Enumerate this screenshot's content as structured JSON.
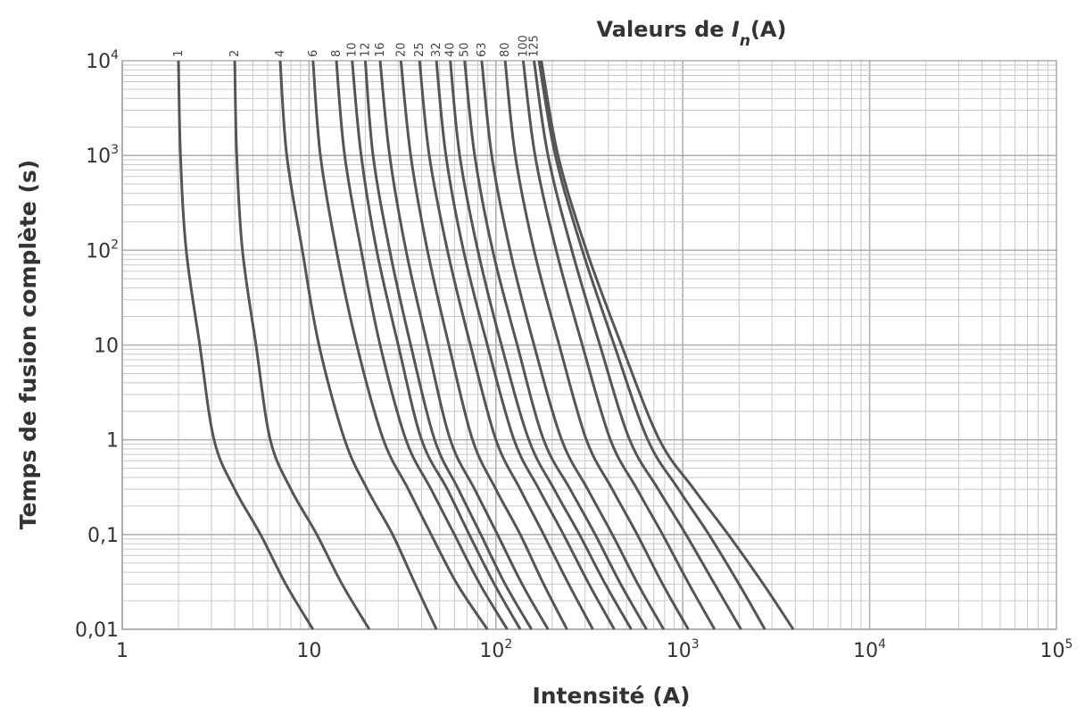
{
  "chart_data": {
    "type": "line",
    "title_prefix": "Valeurs de ",
    "title_var": "I",
    "title_sub": "n",
    "title_suffix": "(A)",
    "xlabel": "Intensité (A)",
    "ylabel": "Temps de fusion complète (s)",
    "x_scale": "log",
    "y_scale": "log",
    "xlim": [
      1,
      100000
    ],
    "ylim": [
      0.01,
      10000
    ],
    "grid": true,
    "x_ticks": [
      {
        "value": 1,
        "mantissa": "1",
        "exp": ""
      },
      {
        "value": 10,
        "mantissa": "10",
        "exp": ""
      },
      {
        "value": 100,
        "mantissa": "10",
        "exp": "2"
      },
      {
        "value": 1000,
        "mantissa": "10",
        "exp": "3"
      },
      {
        "value": 10000,
        "mantissa": "10",
        "exp": "4"
      },
      {
        "value": 100000,
        "mantissa": "10",
        "exp": "5"
      }
    ],
    "y_ticks": [
      {
        "value": 0.01,
        "mantissa": "0,01",
        "exp": ""
      },
      {
        "value": 0.1,
        "mantissa": "0,1",
        "exp": ""
      },
      {
        "value": 1,
        "mantissa": "1",
        "exp": ""
      },
      {
        "value": 10,
        "mantissa": "10",
        "exp": ""
      },
      {
        "value": 100,
        "mantissa": "10",
        "exp": "2"
      },
      {
        "value": 1000,
        "mantissa": "10",
        "exp": "3"
      },
      {
        "value": 10000,
        "mantissa": "10",
        "exp": "4"
      }
    ],
    "series": [
      {
        "name": "1",
        "x": [
          2.0,
          2.05,
          2.2,
          2.6,
          3.1,
          4.0,
          5.5,
          7.5,
          10.5
        ],
        "y": [
          10000,
          1000,
          100,
          10,
          1,
          0.3,
          0.1,
          0.03,
          0.01
        ]
      },
      {
        "name": "2",
        "x": [
          4.0,
          4.1,
          4.4,
          5.2,
          6.2,
          8.0,
          11,
          15,
          21
        ],
        "y": [
          10000,
          1000,
          100,
          10,
          1,
          0.3,
          0.1,
          0.03,
          0.01
        ]
      },
      {
        "name": "4",
        "x": [
          7.0,
          7.6,
          9.2,
          11.3,
          15.5,
          20.5,
          28,
          37,
          48
        ],
        "y": [
          10000,
          1000,
          100,
          10,
          1,
          0.3,
          0.1,
          0.03,
          0.01
        ]
      },
      {
        "name": "6",
        "x": [
          10.5,
          11.5,
          14,
          18,
          25,
          34,
          45,
          62,
          90
        ],
        "y": [
          10000,
          1000,
          100,
          10,
          1,
          0.3,
          0.1,
          0.03,
          0.01
        ]
      },
      {
        "name": "8",
        "x": [
          14,
          15.5,
          19,
          24,
          33,
          45,
          60,
          82,
          115
        ],
        "y": [
          10000,
          1000,
          100,
          10,
          1,
          0.3,
          0.1,
          0.03,
          0.01
        ]
      },
      {
        "name": "10",
        "x": [
          17,
          19,
          23,
          30,
          40,
          55,
          72,
          98,
          135
        ],
        "y": [
          10000,
          1000,
          100,
          10,
          1,
          0.3,
          0.1,
          0.03,
          0.01
        ]
      },
      {
        "name": "12",
        "x": [
          20,
          22,
          27,
          35,
          47,
          63,
          83,
          112,
          155
        ],
        "y": [
          10000,
          1000,
          100,
          10,
          1,
          0.3,
          0.1,
          0.03,
          0.01
        ]
      },
      {
        "name": "16",
        "x": [
          24,
          27,
          33,
          43,
          57,
          77,
          102,
          138,
          190
        ],
        "y": [
          10000,
          1000,
          100,
          10,
          1,
          0.3,
          0.1,
          0.03,
          0.01
        ]
      },
      {
        "name": "20",
        "x": [
          31,
          35,
          43,
          56,
          75,
          100,
          135,
          180,
          240
        ],
        "y": [
          10000,
          1000,
          100,
          10,
          1,
          0.3,
          0.1,
          0.03,
          0.01
        ]
      },
      {
        "name": "25",
        "x": [
          39,
          44,
          55,
          73,
          100,
          135,
          180,
          245,
          330
        ],
        "y": [
          10000,
          1000,
          100,
          10,
          1,
          0.3,
          0.1,
          0.03,
          0.01
        ]
      },
      {
        "name": "32",
        "x": [
          48,
          54,
          67,
          90,
          125,
          170,
          230,
          315,
          430
        ],
        "y": [
          10000,
          1000,
          100,
          10,
          1,
          0.3,
          0.1,
          0.03,
          0.01
        ]
      },
      {
        "name": "40",
        "x": [
          57,
          64,
          80,
          107,
          150,
          205,
          280,
          385,
          530
        ],
        "y": [
          10000,
          1000,
          100,
          10,
          1,
          0.3,
          0.1,
          0.03,
          0.01
        ]
      },
      {
        "name": "50",
        "x": [
          68,
          77,
          96,
          130,
          180,
          250,
          340,
          465,
          640
        ],
        "y": [
          10000,
          1000,
          100,
          10,
          1,
          0.3,
          0.1,
          0.03,
          0.01
        ]
      },
      {
        "name": "63",
        "x": [
          84,
          95,
          119,
          160,
          225,
          310,
          420,
          575,
          790
        ],
        "y": [
          10000,
          1000,
          100,
          10,
          1,
          0.3,
          0.1,
          0.03,
          0.01
        ]
      },
      {
        "name": "80",
        "x": [
          112,
          127,
          160,
          218,
          305,
          420,
          570,
          780,
          1070
        ],
        "y": [
          10000,
          1000,
          100,
          10,
          1,
          0.3,
          0.1,
          0.03,
          0.01
        ]
      },
      {
        "name": "100",
        "x": [
          140,
          162,
          210,
          290,
          410,
          570,
          780,
          1080,
          1480
        ],
        "y": [
          10000,
          1000,
          100,
          10,
          1,
          0.3,
          0.1,
          0.03,
          0.01
        ]
      },
      {
        "name": "125",
        "x": [
          160,
          190,
          255,
          360,
          520,
          740,
          1040,
          1480,
          2050
        ],
        "y": [
          10000,
          1000,
          100,
          10,
          1,
          0.3,
          0.1,
          0.03,
          0.01
        ]
      },
      {
        "name": "",
        "x": [
          170,
          208,
          290,
          430,
          650,
          950,
          1380,
          2000,
          2750
        ],
        "y": [
          10000,
          1000,
          100,
          10,
          1,
          0.3,
          0.1,
          0.03,
          0.01
        ]
      },
      {
        "name": "",
        "x": [
          175,
          215,
          305,
          470,
          750,
          1150,
          1750,
          2700,
          3900
        ],
        "y": [
          10000,
          1000,
          100,
          10,
          1,
          0.3,
          0.1,
          0.03,
          0.01
        ]
      }
    ]
  }
}
